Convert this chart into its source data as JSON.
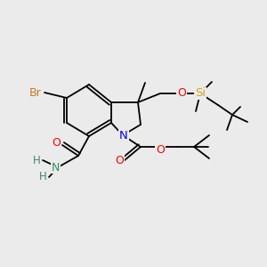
{
  "background_color": "#ebebeb",
  "bond_color": "#000000",
  "atom_colors": {
    "Br": "#cc7722",
    "N": "#0000ff",
    "O": "#ff0000",
    "Si": "#daa520",
    "H": "#3c8a5e",
    "C": "#000000"
  },
  "font_size": 8.5,
  "fig_size": [
    3.0,
    3.0
  ],
  "dpi": 100
}
